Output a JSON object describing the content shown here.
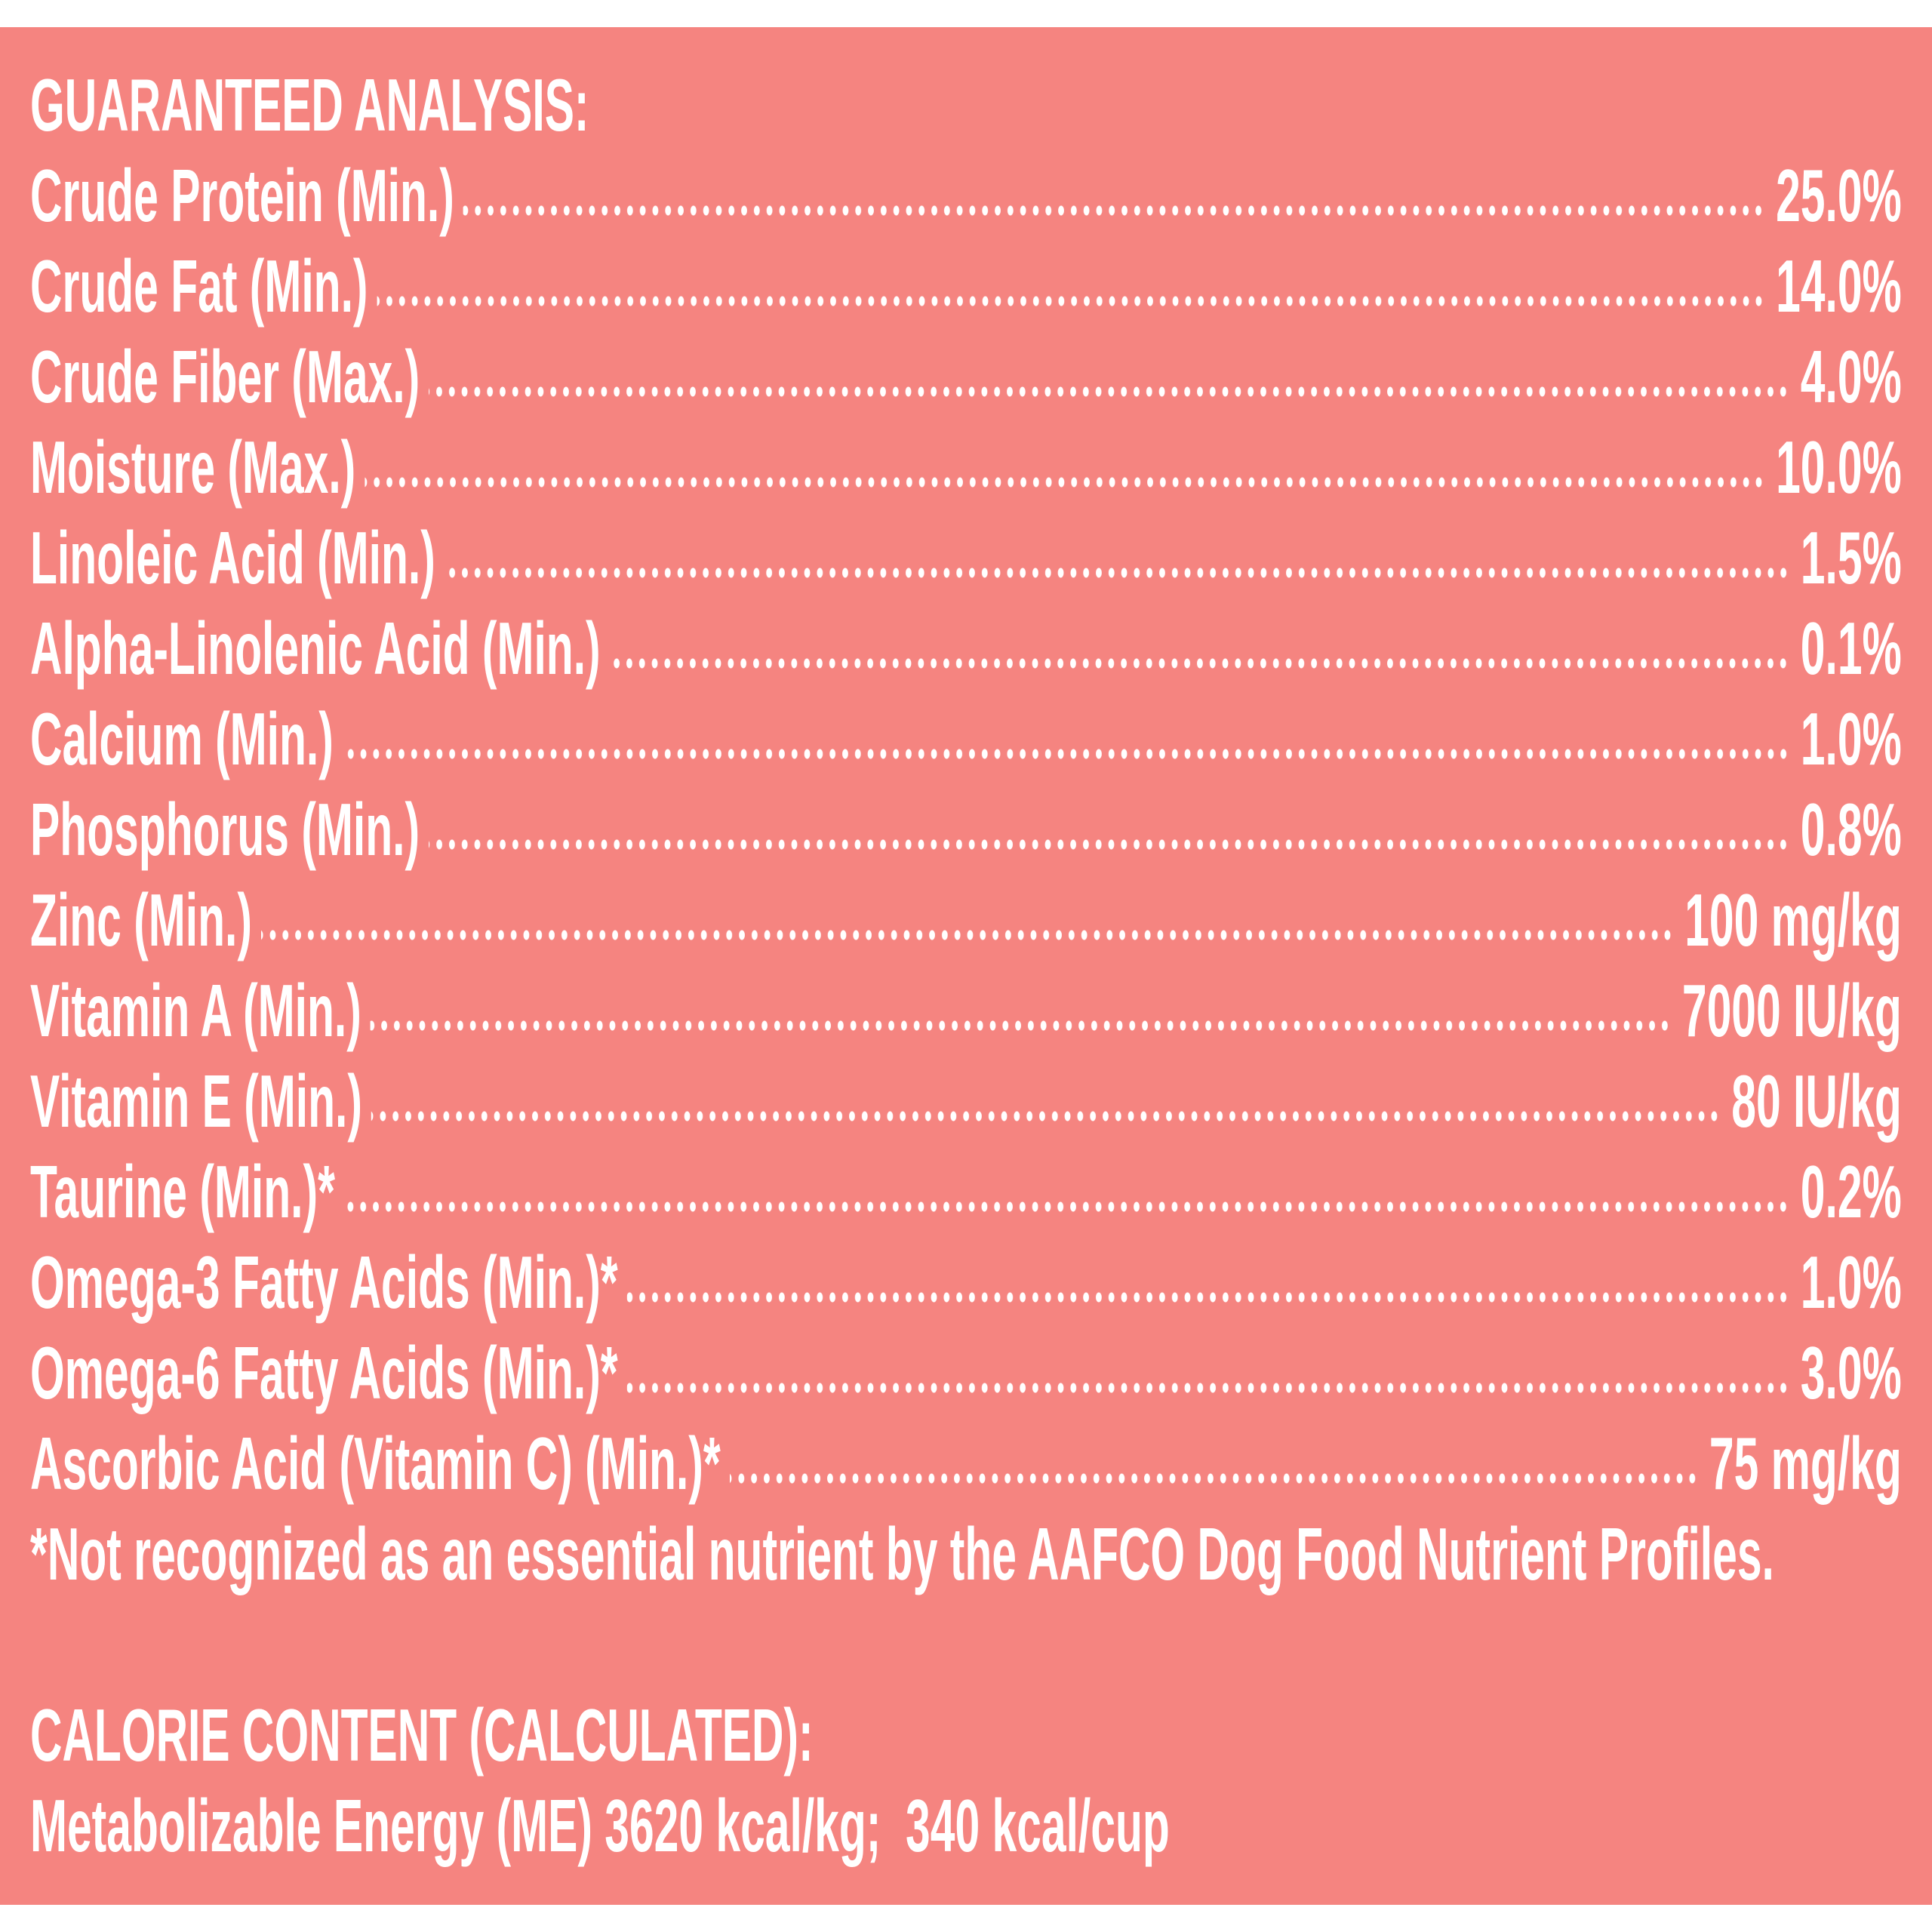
{
  "title": "GUARANTEED ANALYSIS:",
  "rows": [
    {
      "label": "Crude Protein (Min.)",
      "value": "25.0%"
    },
    {
      "label": "Crude Fat (Min.)",
      "value": "14.0%"
    },
    {
      "label": "Crude Fiber (Max.)",
      "value": "4.0%"
    },
    {
      "label": "Moisture (Max.)",
      "value": "10.0%"
    },
    {
      "label": "Linoleic Acid (Min.)",
      "value": "1.5%"
    },
    {
      "label": "Alpha-Linolenic Acid (Min.)",
      "value": "0.1%"
    },
    {
      "label": "Calcium (Min.)",
      "value": "1.0%"
    },
    {
      "label": "Phosphorus (Min.)",
      "value": "0.8%"
    },
    {
      "label": "Zinc (Min.)",
      "value": "100 mg/kg"
    },
    {
      "label": "Vitamin A (Min.)",
      "value": "7000 IU/kg"
    },
    {
      "label": "Vitamin E (Min.)",
      "value": "80 IU/kg"
    },
    {
      "label": "Taurine (Min.)*",
      "value": "0.2%"
    },
    {
      "label": "Omega-3 Fatty Acids (Min.)*",
      "value": "1.0%"
    },
    {
      "label": "Omega-6 Fatty Acids (Min.)*",
      "value": "3.0%"
    },
    {
      "label": "Ascorbic Acid (Vitamin C) (Min.)*",
      "value": "75 mg/kg"
    }
  ],
  "footnote": "*Not recognized as an essential nutrient by the AAFCO Dog Food Nutrient Profiles.",
  "calorie": {
    "title": "CALORIE CONTENT (CALCULATED):",
    "text": "Metabolizable Energy (ME) 3620 kcal/kg;  340 kcal/cup"
  }
}
